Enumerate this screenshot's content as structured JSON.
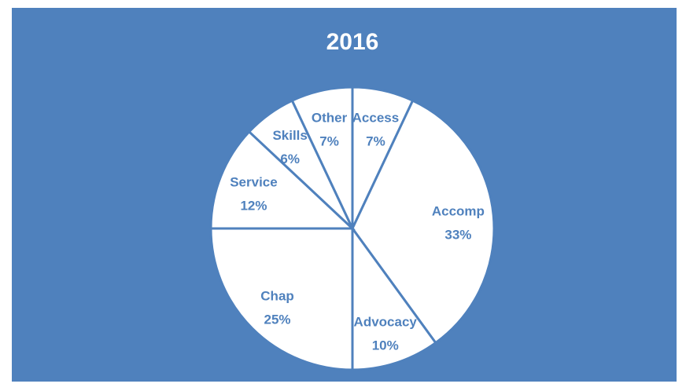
{
  "chart_data": {
    "type": "pie",
    "title": "2016",
    "categories": [
      "Access",
      "Accomp",
      "Advocacy",
      "Chap",
      "Service",
      "Skills",
      "Other"
    ],
    "values": [
      7,
      33,
      10,
      25,
      12,
      6,
      7
    ],
    "value_labels": [
      "7%",
      "33%",
      "10%",
      "25%",
      "12%",
      "6%",
      "7%"
    ],
    "color": "#ffffff",
    "background": "#4f81bd",
    "label_color": "#4f81bd"
  }
}
